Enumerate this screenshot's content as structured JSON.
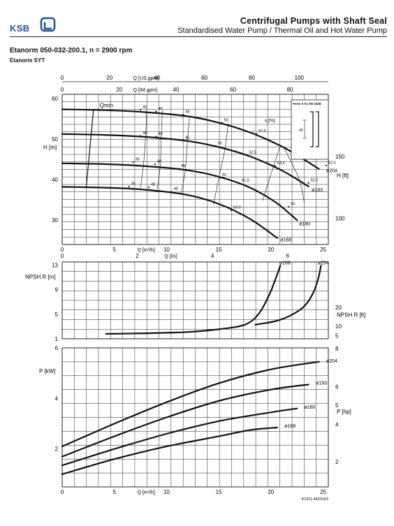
{
  "header": {
    "brand": "KSB",
    "title": "Centrifugal Pumps with Shaft Seal",
    "subtitle": "Standardised Water Pump / Thermal Oil and Hot Water Pump",
    "model": "Etanorm 050-032-200.1, n = 2900 rpm",
    "variant": "Etanorm SYT",
    "doc_ref": "K1311.462/19/3"
  },
  "colors": {
    "grid": "#222222",
    "curve": "#111111",
    "brand": "#1f4f9a"
  },
  "chart_data": [
    {
      "type": "line",
      "name": "head",
      "x_bottom_label": "Q [m³/h]",
      "x_top_labels": [
        "Q [US.gpm]",
        "Q [IM.gpm]"
      ],
      "ylabel": "H [m]",
      "ylabel_right": "H [ft]",
      "xlim": [
        0,
        25.5
      ],
      "ylim": [
        24,
        61
      ],
      "x_ticks": [
        0,
        5,
        10,
        15,
        20,
        25
      ],
      "y_ticks": [
        30,
        40,
        50,
        60
      ],
      "y_right_ticks": [
        {
          "label": "100",
          "value": 30.48
        },
        {
          "label": "150",
          "value": 45.72
        }
      ],
      "top_us_ticks": [
        {
          "label": "0",
          "value": 0
        },
        {
          "label": "20",
          "value": 4.54
        },
        {
          "label": "40",
          "value": 9.08
        },
        {
          "label": "60",
          "value": 13.63
        },
        {
          "label": "80",
          "value": 18.17
        },
        {
          "label": "100",
          "value": 22.71
        }
      ],
      "top_im_ticks": [
        {
          "label": "0",
          "value": 0
        },
        {
          "label": "20",
          "value": 5.46
        },
        {
          "label": "40",
          "value": 10.91
        },
        {
          "label": "60",
          "value": 16.37
        },
        {
          "label": "80",
          "value": 21.82
        }
      ],
      "series": [
        {
          "name": "ø204",
          "x": [
            0,
            4,
            8,
            12,
            15,
            18,
            21,
            23,
            24.6
          ],
          "y": [
            57.3,
            57.1,
            56.6,
            55.6,
            54,
            51.6,
            48.2,
            45.2,
            42.6
          ]
        },
        {
          "name": "ø193",
          "x": [
            0,
            4,
            8,
            12,
            15,
            18,
            21,
            23.6
          ],
          "y": [
            51.2,
            51,
            50.5,
            49.5,
            48,
            45.7,
            42.3,
            38.3
          ]
        },
        {
          "name": "ø180",
          "x": [
            0,
            4,
            8,
            12,
            15,
            18,
            20.5,
            22.5
          ],
          "y": [
            44,
            43.8,
            43.3,
            42.3,
            40.7,
            38,
            34.3,
            30
          ]
        },
        {
          "name": "ø168",
          "x": [
            0,
            4,
            8,
            12,
            15,
            18,
            20.6
          ],
          "y": [
            38.2,
            38,
            37.5,
            36.2,
            34,
            30.3,
            25.6
          ]
        }
      ],
      "min_flow": {
        "label": "Qmin",
        "x": [
          3,
          2.3
        ],
        "y": [
          57.2,
          38
        ]
      },
      "efficiency_label": "η [%]",
      "efficiency_marks": [
        {
          "label": "35",
          "x": 7.7,
          "y": 57.6
        },
        {
          "label": "40",
          "x": 9.2,
          "y": 57.2
        },
        {
          "label": "45",
          "x": 11.8,
          "y": 56.4
        },
        {
          "label": "50",
          "x": 15.5,
          "y": 54.4
        },
        {
          "label": "52.5",
          "x": 18.8,
          "y": 51.7
        },
        {
          "label": "53.2",
          "x": 22.4,
          "y": 47.8
        },
        {
          "label": "52.5",
          "x": 25.5,
          "y": 43.9
        },
        {
          "label": "35",
          "x": 7.7,
          "y": 51.2
        },
        {
          "label": "40",
          "x": 9.2,
          "y": 51
        },
        {
          "label": "45",
          "x": 11.8,
          "y": 50.1
        },
        {
          "label": "50",
          "x": 14.9,
          "y": 48.7
        },
        {
          "label": "52.5",
          "x": 17.9,
          "y": 46.5
        },
        {
          "label": "53.3",
          "x": 20.6,
          "y": 43.8
        },
        {
          "label": "52.5",
          "x": 23.8,
          "y": 39.6
        },
        {
          "label": "35",
          "x": 7,
          "y": 44.7
        },
        {
          "label": "40",
          "x": 9.1,
          "y": 44.2
        },
        {
          "label": "45",
          "x": 11.4,
          "y": 43.1
        },
        {
          "label": "50",
          "x": 15.3,
          "y": 40.9
        },
        {
          "label": "51.0",
          "x": 17.2,
          "y": 39.5
        },
        {
          "label": "50",
          "x": 21.9,
          "y": 33.7
        },
        {
          "label": "35",
          "x": 6.6,
          "y": 38.7
        },
        {
          "label": "40",
          "x": 8.5,
          "y": 38.5
        },
        {
          "label": "45",
          "x": 10.7,
          "y": 37.4
        },
        {
          "label": "50.0",
          "x": 16.4,
          "y": 32.9
        }
      ],
      "efficiency_curves": [
        {
          "x": [
            8.1,
            8.0,
            7.8,
            7.5
          ],
          "y": [
            57.3,
            51,
            43.8,
            38
          ]
        },
        {
          "x": [
            9.6,
            9.5,
            9.4,
            9.1
          ],
          "y": [
            57,
            50.7,
            43.5,
            37.6
          ]
        },
        {
          "x": [
            12.2,
            12.0,
            11.8,
            11.4
          ],
          "y": [
            55.6,
            49.5,
            42.3,
            36.5
          ]
        },
        {
          "x": [
            15.9,
            15.6,
            15.0,
            14.5
          ],
          "y": [
            53.7,
            47.6,
            40.3,
            33.8
          ]
        },
        {
          "x": [
            20.9,
            20.2,
            19.2
          ],
          "y": [
            48.3,
            42.9,
            34.8
          ]
        },
        {
          "x": [
            21.3,
            22.7,
            23.2
          ],
          "y": [
            47.6,
            40.1,
            34.2
          ]
        }
      ],
      "curve_labels": [
        {
          "label": "ø204",
          "x": 25.3,
          "y": 41.8
        },
        {
          "label": "ø193",
          "x": 23.9,
          "y": 37.1
        },
        {
          "label": "ø180",
          "x": 22.7,
          "y": 28.7
        },
        {
          "label": "ø168",
          "x": 20.9,
          "y": 24.8
        }
      ],
      "inset": {
        "title": "Form A 01 AN 1528",
        "label": "d2"
      }
    },
    {
      "type": "line",
      "name": "npsh",
      "x_top_label": "Q [l/s]",
      "ylabel": "NPSH R [m]",
      "ylabel_right": "NPSH R [ft]",
      "xlim": [
        0,
        25.5
      ],
      "ylim": [
        1,
        13.5
      ],
      "y_ticks": [
        1,
        5,
        9,
        13
      ],
      "y_right_ticks": [
        {
          "label": "5",
          "value": 1.52
        },
        {
          "label": "10",
          "value": 3.05
        },
        {
          "label": "20",
          "value": 6.1
        }
      ],
      "top_ticks": [
        {
          "label": "0",
          "value": 0
        },
        {
          "label": "2",
          "value": 7.2
        },
        {
          "label": "4",
          "value": 14.4
        },
        {
          "label": "6",
          "value": 21.6
        }
      ],
      "series": [
        {
          "name": "ø168",
          "x": [
            4.2,
            8,
            12,
            15,
            17.5,
            18.8,
            19.8,
            20.5,
            20.9
          ],
          "y": [
            1.8,
            1.9,
            2.1,
            2.55,
            3.3,
            5,
            8,
            11,
            12.9
          ]
        },
        {
          "name": "ø204",
          "x": [
            18.5,
            20.5,
            22,
            23.2,
            24,
            24.5,
            24.8
          ],
          "y": [
            3.3,
            3.9,
            4.9,
            6.3,
            8.3,
            10.6,
            12.9
          ]
        }
      ],
      "curve_labels": [
        {
          "label": "ø168",
          "x": 20.8,
          "y": 13.1
        },
        {
          "label": "ø204",
          "x": 24.5,
          "y": 13.1
        }
      ]
    },
    {
      "type": "line",
      "name": "power",
      "x_bottom_label": "Q [m³/h]",
      "ylabel": "P [kW]",
      "ylabel_right": "P [hp]",
      "xlim": [
        0,
        25.5
      ],
      "ylim": [
        0.5,
        6
      ],
      "x_ticks": [
        0,
        5,
        10,
        15,
        20,
        25
      ],
      "y_ticks": [
        2,
        4,
        6
      ],
      "y_right_ticks": [
        {
          "label": "2",
          "value": 1.49
        },
        {
          "label": "4",
          "value": 2.98
        },
        {
          "label": "5",
          "value": 3.73
        },
        {
          "label": "6",
          "value": 4.47
        },
        {
          "label": "8",
          "value": 5.97
        }
      ],
      "series": [
        {
          "name": "ø204",
          "x": [
            0,
            5,
            10,
            15,
            20,
            24.6
          ],
          "y": [
            2.1,
            3.0,
            3.85,
            4.6,
            5.15,
            5.45
          ]
        },
        {
          "name": "ø193",
          "x": [
            0,
            5,
            10,
            15,
            20,
            23.6
          ],
          "y": [
            1.7,
            2.5,
            3.25,
            3.9,
            4.35,
            4.55
          ]
        },
        {
          "name": "ø180",
          "x": [
            0,
            5,
            10,
            15,
            20,
            22.5
          ],
          "y": [
            1.35,
            2.0,
            2.6,
            3.1,
            3.45,
            3.6
          ]
        },
        {
          "name": "ø168",
          "x": [
            0,
            5,
            10,
            15,
            18,
            20.6
          ],
          "y": [
            1.0,
            1.6,
            2.1,
            2.5,
            2.75,
            2.85
          ]
        }
      ],
      "curve_labels": [
        {
          "label": "ø204",
          "x": 25.3,
          "y": 5.42
        },
        {
          "label": "ø193",
          "x": 24.3,
          "y": 4.55
        },
        {
          "label": "ø180",
          "x": 23.2,
          "y": 3.6
        },
        {
          "label": "ø168",
          "x": 21.3,
          "y": 2.85
        }
      ]
    }
  ]
}
